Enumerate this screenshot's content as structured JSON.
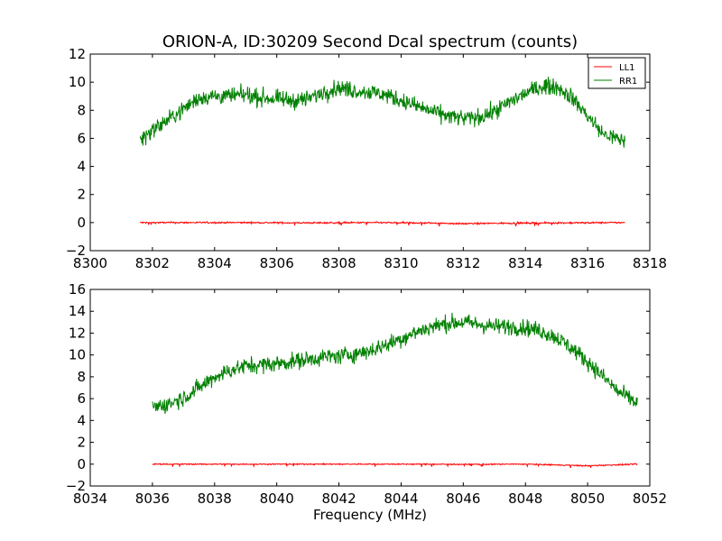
{
  "figure": {
    "title": "ORION-A, ID:30209 Second Dcal spectrum (counts)",
    "xlabel": "Frequency (MHz)"
  },
  "chart_data": [
    {
      "type": "line",
      "title": "ORION-A, ID:30209 Second Dcal spectrum (counts)",
      "xlabel": "",
      "ylabel": "",
      "xlim": [
        8300,
        8318
      ],
      "ylim": [
        -2,
        12
      ],
      "xticks": [
        8300,
        8302,
        8304,
        8306,
        8308,
        8310,
        8312,
        8314,
        8316,
        8318
      ],
      "yticks": [
        -2,
        0,
        2,
        4,
        6,
        8,
        10,
        12
      ],
      "ytick_labels": [
        "−2",
        "0",
        "2",
        "4",
        "6",
        "8",
        "10",
        "12"
      ],
      "legend": {
        "position": "top-right",
        "entries": [
          "LL1",
          "RR1"
        ]
      },
      "grid": false,
      "series": [
        {
          "name": "LL1",
          "color": "#ff0000",
          "x": [
            8301.6,
            8303,
            8305,
            8307,
            8309,
            8311,
            8312,
            8313,
            8315,
            8317.2
          ],
          "y": [
            0.0,
            0.0,
            0.0,
            -0.02,
            0.0,
            -0.03,
            -0.08,
            -0.05,
            -0.02,
            0.0
          ]
        },
        {
          "name": "RR1",
          "color": "#008000",
          "x": [
            8301.6,
            8302.0,
            8302.5,
            8303.0,
            8303.5,
            8304.0,
            8304.5,
            8305.0,
            8305.5,
            8306.0,
            8306.5,
            8307.0,
            8307.5,
            8308.0,
            8308.5,
            8309.0,
            8309.5,
            8310.0,
            8310.5,
            8311.0,
            8311.5,
            8312.0,
            8312.5,
            8313.0,
            8313.5,
            8314.0,
            8314.5,
            8315.0,
            8315.5,
            8316.0,
            8316.5,
            8317.2
          ],
          "y": [
            5.9,
            6.6,
            7.3,
            8.1,
            8.9,
            9.0,
            9.0,
            9.1,
            8.9,
            8.8,
            8.7,
            8.8,
            9.3,
            9.6,
            9.4,
            9.3,
            9.1,
            8.7,
            8.3,
            7.9,
            7.6,
            7.4,
            7.5,
            7.9,
            8.6,
            9.2,
            9.7,
            9.7,
            8.9,
            7.6,
            6.3,
            5.8
          ]
        }
      ]
    },
    {
      "type": "line",
      "title": "",
      "xlabel": "Frequency (MHz)",
      "ylabel": "",
      "xlim": [
        8034,
        8052
      ],
      "ylim": [
        -2,
        16
      ],
      "xticks": [
        8034,
        8036,
        8038,
        8040,
        8042,
        8044,
        8046,
        8048,
        8050,
        8052
      ],
      "yticks": [
        -2,
        0,
        2,
        4,
        6,
        8,
        10,
        12,
        14,
        16
      ],
      "ytick_labels": [
        "−2",
        "0",
        "2",
        "4",
        "6",
        "8",
        "10",
        "12",
        "14",
        "16"
      ],
      "grid": false,
      "series": [
        {
          "color": "#ff0000",
          "x": [
            8036.0,
            8038,
            8040,
            8042,
            8044,
            8046,
            8048,
            8050,
            8051.6
          ],
          "y": [
            0.0,
            0.0,
            0.0,
            0.0,
            0.0,
            -0.02,
            0.0,
            -0.15,
            0.0
          ]
        },
        {
          "color": "#008000",
          "x": [
            8036.0,
            8036.5,
            8037.0,
            8037.5,
            8038.0,
            8038.5,
            8039.0,
            8039.5,
            8040.0,
            8040.5,
            8041.0,
            8041.5,
            8042.0,
            8042.5,
            8043.0,
            8043.5,
            8044.0,
            8044.5,
            8045.0,
            8045.5,
            8046.0,
            8046.5,
            8047.0,
            8047.5,
            8048.0,
            8048.5,
            8049.0,
            8049.5,
            8050.0,
            8050.5,
            8051.0,
            8051.6
          ],
          "y": [
            5.2,
            5.5,
            6.1,
            7.0,
            8.0,
            8.6,
            9.0,
            9.1,
            9.2,
            9.4,
            9.6,
            9.8,
            9.9,
            10.1,
            10.4,
            10.9,
            11.5,
            12.1,
            12.6,
            12.9,
            13.0,
            12.8,
            12.6,
            12.6,
            12.5,
            12.2,
            11.6,
            10.6,
            9.4,
            8.0,
            6.6,
            5.6
          ]
        }
      ]
    }
  ]
}
